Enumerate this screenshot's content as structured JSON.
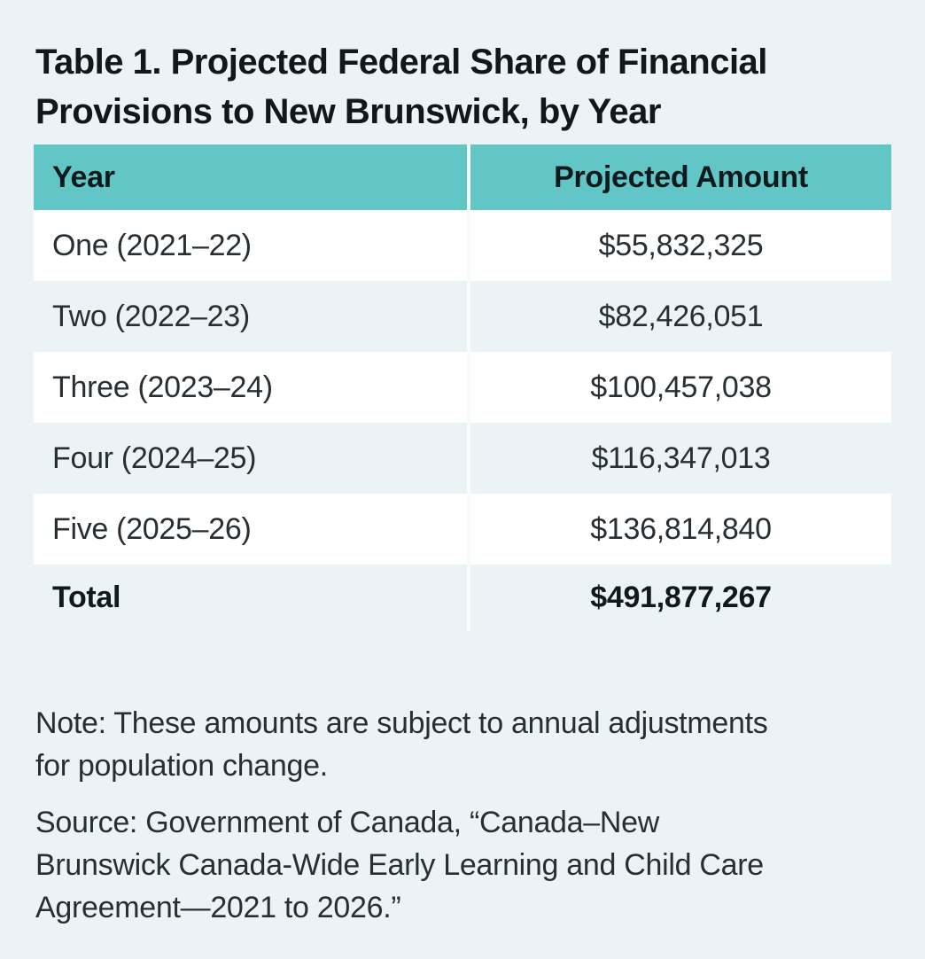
{
  "colors": {
    "page_background": "#EBF3F6",
    "table_header_background": "#63C6C6",
    "row_white": "#FFFFFF",
    "text_dark": "#121719"
  },
  "title": {
    "lines": [
      "Table 1. Projected Federal Share of Financial",
      "Provisions to New Brunswick, by Year"
    ]
  },
  "table": {
    "header": {
      "year": "Year",
      "amount": "Projected Amount"
    },
    "rows": [
      {
        "year": "One (2021–22)",
        "amount": "$55,832,325"
      },
      {
        "year": "Two (2022–23)",
        "amount": "$82,426,051"
      },
      {
        "year": "Three (2023–24)",
        "amount": "$100,457,038"
      },
      {
        "year": "Four (2024–25)",
        "amount": "$116,347,013"
      },
      {
        "year": "Five (2025–26)",
        "amount": "$136,814,840"
      }
    ],
    "total": {
      "label": "Total",
      "amount": "$491,877,267"
    }
  },
  "note": {
    "lines": [
      "Note: These amounts are subject to annual adjustments",
      "for population change."
    ]
  },
  "source": {
    "lines": [
      "Source: Government of Canada, “Canada–New",
      "Brunswick Canada-Wide Early Learning and Child Care",
      "Agreement—2021 to 2026.”"
    ]
  },
  "chart_data": {
    "type": "table",
    "title": "Table 1. Projected Federal Share of Financial Provisions to New Brunswick, by Year",
    "columns": [
      "Year",
      "Projected Amount"
    ],
    "rows": [
      [
        "One (2021–22)",
        "$55,832,325"
      ],
      [
        "Two (2022–23)",
        "$82,426,051"
      ],
      [
        "Three (2023–24)",
        "$100,457,038"
      ],
      [
        "Four (2024–25)",
        "$116,347,013"
      ],
      [
        "Five (2025–26)",
        "$136,814,840"
      ],
      [
        "Total",
        "$491,877,267"
      ]
    ]
  }
}
